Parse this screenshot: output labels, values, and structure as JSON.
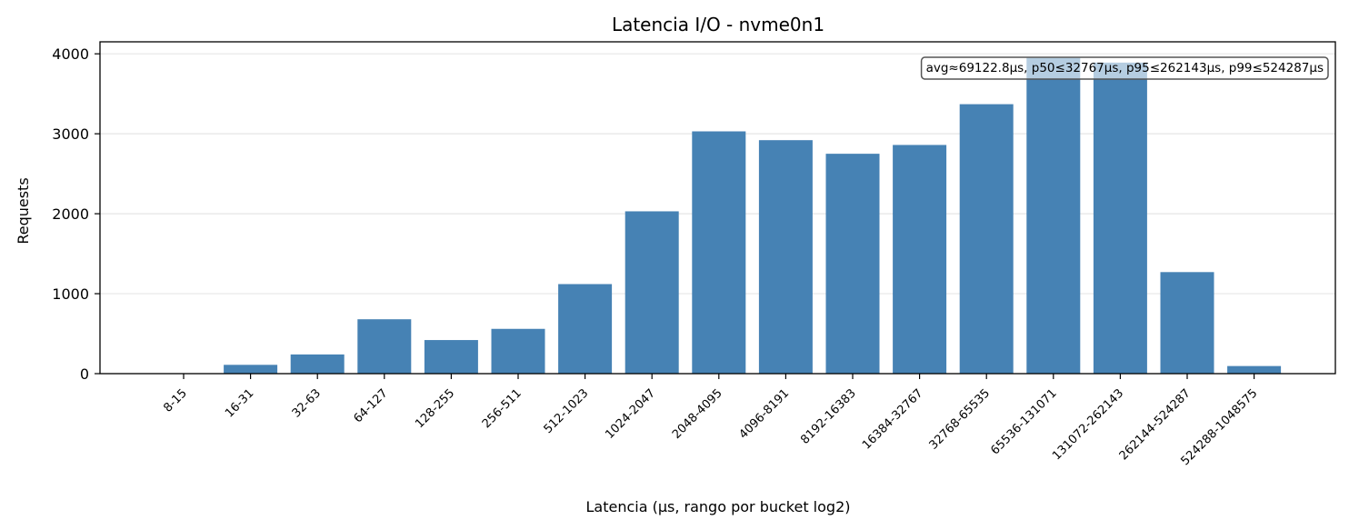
{
  "chart_data": {
    "type": "bar",
    "title": "Latencia I/O - nvme0n1",
    "xlabel": "Latencia (µs, rango por bucket log2)",
    "ylabel": "Requests",
    "categories": [
      "8-15",
      "16-31",
      "32-63",
      "64-127",
      "128-255",
      "256-511",
      "512-1023",
      "1024-2047",
      "2048-4095",
      "4096-8191",
      "8192-16383",
      "16384-32767",
      "32768-65535",
      "65536-131071",
      "131072-262143",
      "262144-524287",
      "524288-1048575"
    ],
    "values": [
      2,
      110,
      240,
      680,
      420,
      560,
      1120,
      2030,
      3030,
      2920,
      2750,
      2860,
      3370,
      3950,
      3890,
      1270,
      95
    ],
    "ylim": [
      0,
      4150
    ],
    "yticks": [
      0,
      1000,
      2000,
      3000,
      4000
    ],
    "grid": "y",
    "bar_color": "#4682b4",
    "annotation": "avg≈69122.8µs, p50≤32767µs, p95≤262143µs, p99≤524287µs"
  }
}
